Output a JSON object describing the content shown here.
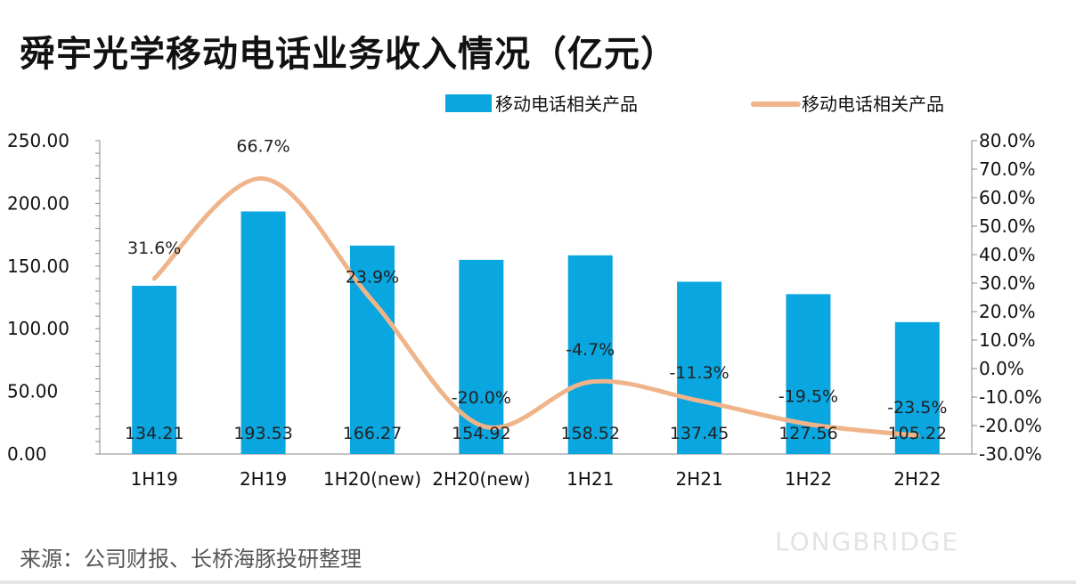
{
  "title": "舜宇光学移动电话业务收入情况（亿元）",
  "source": "来源：公司财报、长桥海豚投研整理",
  "watermark": "LONGBRIDGE",
  "chart_data": {
    "type": "bar",
    "title": "舜宇光学移动电话业务收入情况（亿元）",
    "categories": [
      "1H19",
      "2H19",
      "1H20(new)",
      "2H20(new)",
      "1H21",
      "2H21",
      "1H22",
      "2H22"
    ],
    "series": [
      {
        "name": "移动电话相关产品",
        "type": "bar",
        "axis": "left",
        "color": "#0aa6e0",
        "values": [
          134.21,
          193.53,
          166.27,
          154.92,
          158.52,
          137.45,
          127.56,
          105.22
        ],
        "labels": [
          "134.21",
          "193.53",
          "166.27",
          "154.92",
          "158.52",
          "137.45",
          "127.56",
          "105.22"
        ]
      },
      {
        "name": "移动电话相关产品",
        "type": "line",
        "axis": "right",
        "color": "#f0b48a",
        "values": [
          31.6,
          66.7,
          23.9,
          -20.0,
          -4.7,
          -11.3,
          -19.5,
          -23.5
        ],
        "labels": [
          "31.6%",
          "66.7%",
          "23.9%",
          "-20.0%",
          "-4.7%",
          "-11.3%",
          "-19.5%",
          "-23.5%"
        ]
      }
    ],
    "ylim": [
      0,
      250
    ],
    "yticks": [
      "0.00",
      "50.00",
      "100.00",
      "150.00",
      "200.00",
      "250.00"
    ],
    "y2lim": [
      -30,
      80
    ],
    "y2ticks": [
      "-30.0%",
      "-20.0%",
      "-10.0%",
      "0.0%",
      "10.0%",
      "20.0%",
      "30.0%",
      "40.0%",
      "50.0%",
      "60.0%",
      "70.0%",
      "80.0%"
    ],
    "legend": "top-right",
    "grid": false
  }
}
